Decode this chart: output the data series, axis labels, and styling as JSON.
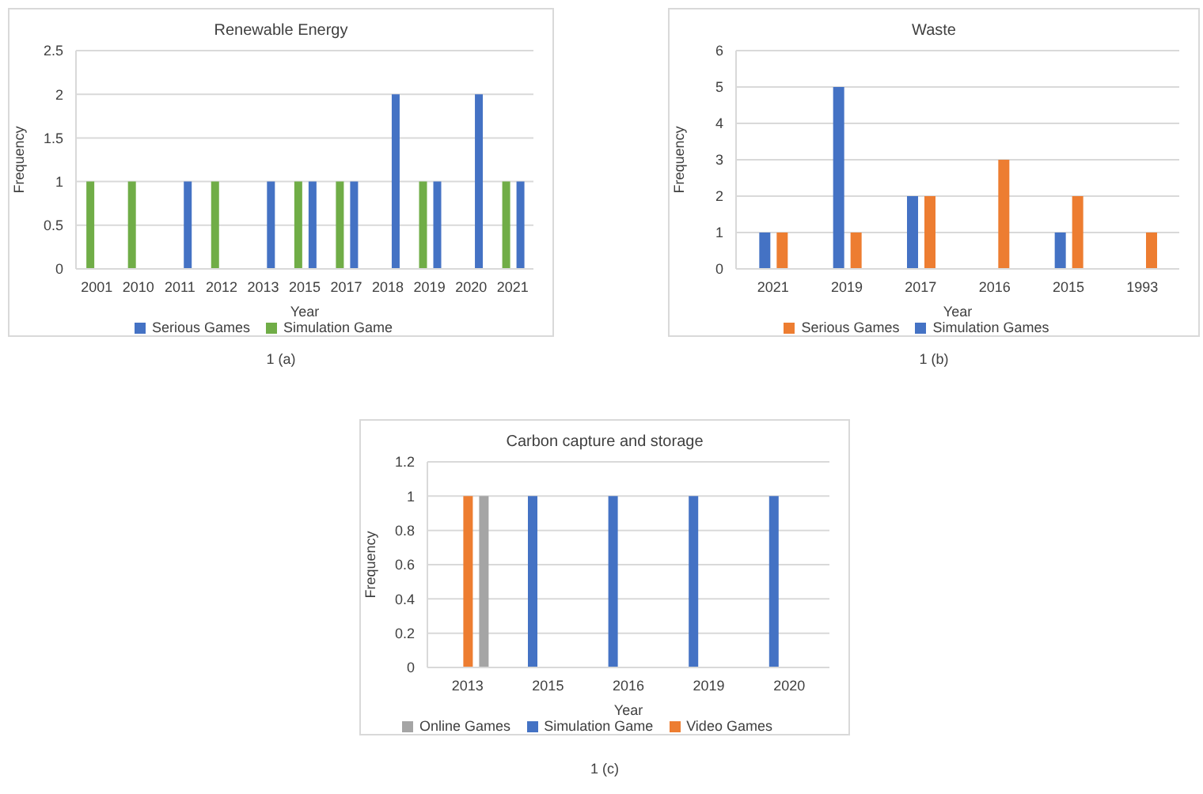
{
  "chart_data": [
    {
      "type": "bar",
      "title": "Renewable Energy",
      "xlabel": "Year",
      "ylabel": "Frequency",
      "categories": [
        "2001",
        "2010",
        "2011",
        "2012",
        "2013",
        "2015",
        "2017",
        "2018",
        "2019",
        "2020",
        "2021"
      ],
      "series": [
        {
          "name": "Simulation Game",
          "color": "#70ad47",
          "values": [
            1,
            1,
            0,
            1,
            0,
            1,
            1,
            0,
            1,
            0,
            1
          ]
        },
        {
          "name": "Serious Games",
          "color": "#4472c4",
          "values": [
            0,
            0,
            1,
            0,
            1,
            1,
            1,
            2,
            1,
            2,
            1
          ]
        }
      ],
      "ylim": [
        0,
        2.5
      ],
      "yticks": [
        0,
        0.5,
        1,
        1.5,
        2,
        2.5
      ],
      "grid": "y",
      "legend": "bottom",
      "annotations": [
        "1 (a)"
      ]
    },
    {
      "type": "bar",
      "title": "Waste",
      "xlabel": "Year",
      "ylabel": "Frequency",
      "categories": [
        "2021",
        "2019",
        "2017",
        "2016",
        "2015",
        "1993"
      ],
      "series": [
        {
          "name": "Simulation Games",
          "color": "#4472c4",
          "values": [
            1,
            5,
            2,
            0,
            1,
            0
          ]
        },
        {
          "name": "Serious Games",
          "color": "#ed7d31",
          "values": [
            1,
            1,
            2,
            3,
            2,
            1
          ]
        }
      ],
      "ylim": [
        0,
        6
      ],
      "yticks": [
        0,
        1,
        2,
        3,
        4,
        5,
        6
      ],
      "grid": "y",
      "legend": "bottom",
      "annotations": [
        "1 (b)"
      ]
    },
    {
      "type": "bar",
      "title": "Carbon capture and storage",
      "xlabel": "Year",
      "ylabel": "Frequency",
      "categories": [
        "2013",
        "2015",
        "2016",
        "2019",
        "2020"
      ],
      "series": [
        {
          "name": "Simulation Game",
          "color": "#4472c4",
          "values": [
            0,
            1,
            1,
            1,
            1
          ]
        },
        {
          "name": "Video Games",
          "color": "#ed7d31",
          "values": [
            1,
            0,
            0,
            0,
            0
          ]
        },
        {
          "name": "Online Games",
          "color": "#a5a5a5",
          "values": [
            1,
            0,
            0,
            0,
            0
          ]
        }
      ],
      "ylim": [
        0,
        1.2
      ],
      "yticks": [
        0,
        0.2,
        0.4,
        0.6,
        0.8,
        1,
        1.2
      ],
      "grid": "y",
      "legend": "bottom",
      "annotations": [
        "1 (c)"
      ]
    }
  ]
}
